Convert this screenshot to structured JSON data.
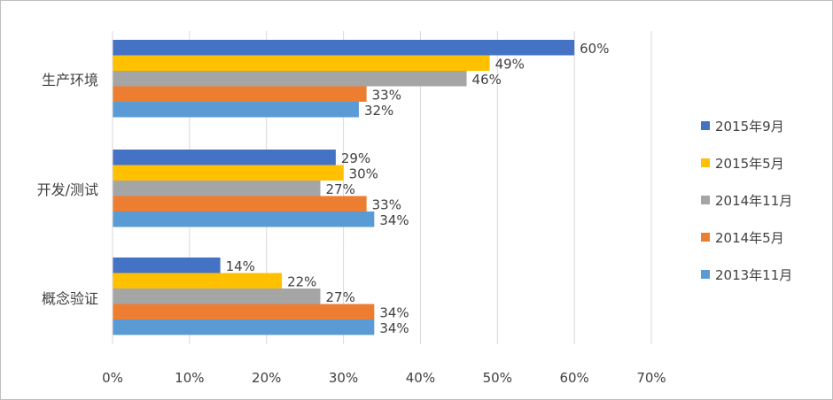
{
  "chart_data": {
    "type": "bar",
    "orientation": "horizontal",
    "categories": [
      "生产环境",
      "开发/测试",
      "概念验证"
    ],
    "series": [
      {
        "name": "2015年9月",
        "color": "#4472c4",
        "values": [
          60,
          29,
          14
        ]
      },
      {
        "name": "2015年5月",
        "color": "#ffc000",
        "values": [
          49,
          30,
          22
        ]
      },
      {
        "name": "2014年11月",
        "color": "#a5a5a5",
        "values": [
          46,
          27,
          27
        ]
      },
      {
        "name": "2014年5月",
        "color": "#ed7d31",
        "values": [
          33,
          33,
          34
        ]
      },
      {
        "name": "2013年11月",
        "color": "#5b9bd5",
        "values": [
          32,
          34,
          34
        ]
      }
    ],
    "value_suffix": "%",
    "xlim": [
      0,
      70
    ],
    "xticks": [
      0,
      10,
      20,
      30,
      40,
      50,
      60,
      70
    ],
    "xtick_labels": [
      "0%",
      "10%",
      "20%",
      "30%",
      "40%",
      "50%",
      "60%",
      "70%"
    ],
    "grid": true,
    "legend_position": "right",
    "title": "",
    "xlabel": "",
    "ylabel": ""
  }
}
